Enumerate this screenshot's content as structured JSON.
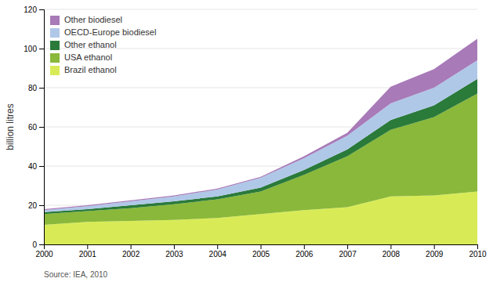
{
  "chart_data": {
    "type": "area",
    "stacked": true,
    "ylabel": "billion litres",
    "annotations": [
      "Source: IEA, 2010"
    ],
    "x": [
      2000,
      2001,
      2002,
      2003,
      2004,
      2005,
      2006,
      2007,
      2008,
      2009,
      2010
    ],
    "xlim": [
      2000,
      2010
    ],
    "xticks": [
      2000,
      2001,
      2002,
      2003,
      2004,
      2005,
      2006,
      2007,
      2008,
      2009,
      2010
    ],
    "ylim": [
      0,
      120
    ],
    "yticks": [
      0,
      20,
      40,
      60,
      80,
      100,
      120
    ],
    "grid": true,
    "legend": "upper left",
    "series": [
      {
        "name": "Brazil ethanol",
        "color": "#d8eb57",
        "values": [
          10.0,
          11.5,
          12.0,
          12.5,
          13.5,
          15.5,
          17.5,
          19.0,
          24.5,
          25.0,
          27.0
        ]
      },
      {
        "name": "USA ethanol",
        "color": "#8ab83a",
        "values": [
          5.5,
          5.5,
          6.5,
          8.0,
          9.5,
          11.5,
          18.0,
          26.0,
          34.0,
          40.0,
          50.0
        ]
      },
      {
        "name": "Other ethanol",
        "color": "#2a7a3a",
        "values": [
          1.0,
          1.0,
          1.5,
          1.5,
          1.5,
          2.0,
          2.5,
          3.5,
          5.0,
          6.0,
          7.5
        ]
      },
      {
        "name": "OECD-Europe biodiesel",
        "color": "#b0c8e8",
        "values": [
          1.0,
          1.5,
          2.0,
          2.5,
          3.5,
          5.0,
          6.0,
          7.0,
          8.5,
          9.0,
          9.5
        ]
      },
      {
        "name": "Other biodiesel",
        "color": "#a87ab8",
        "values": [
          0.5,
          0.5,
          0.5,
          0.5,
          0.5,
          0.5,
          1.0,
          1.5,
          8.5,
          9.5,
          11.0
        ]
      }
    ]
  }
}
